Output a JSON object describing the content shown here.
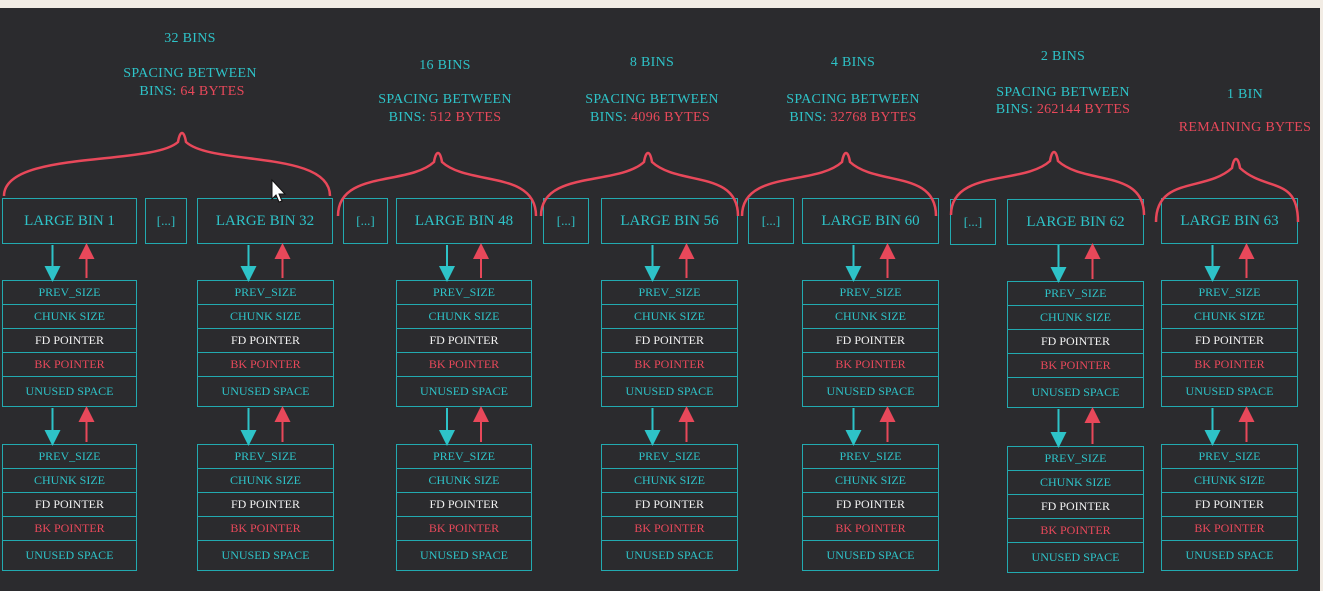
{
  "groups": [
    {
      "count": "32 BINS",
      "spacing_label": "SPACING BETWEEN",
      "spacing_prefix": "BINS:",
      "spacing_value": "64 BYTES"
    },
    {
      "count": "16 BINS",
      "spacing_label": "SPACING BETWEEN",
      "spacing_prefix": "BINS:",
      "spacing_value": "512 BYTES"
    },
    {
      "count": "8 BINS",
      "spacing_label": "SPACING BETWEEN",
      "spacing_prefix": "BINS:",
      "spacing_value": "4096 BYTES"
    },
    {
      "count": "4 BINS",
      "spacing_label": "SPACING BETWEEN",
      "spacing_prefix": "BINS:",
      "spacing_value": "32768 BYTES"
    },
    {
      "count": "2 BINS",
      "spacing_label": "SPACING BETWEEN",
      "spacing_prefix": "BINS:",
      "spacing_value": "262144 BYTES"
    },
    {
      "count": "1 BIN",
      "spacing_value": "REMAINING BYTES"
    }
  ],
  "bins": [
    "LARGE BIN 1",
    "LARGE BIN 32",
    "LARGE BIN 48",
    "LARGE BIN 56",
    "LARGE BIN 60",
    "LARGE BIN 62",
    "LARGE BIN 63"
  ],
  "ellipsis": "[...]",
  "chunk_fields": [
    "PREV_SIZE",
    "CHUNK SIZE",
    "FD POINTER",
    "BK POINTER",
    "UNUSED SPACE"
  ],
  "colors": {
    "background": "#2b2b2e",
    "teal": "#2ec3c8",
    "red": "#e8485a",
    "fd_text": "#f2f2f2",
    "border": "#22aab0"
  },
  "icons": {
    "forward_arrow": "down-arrow-icon",
    "back_arrow": "up-arrow-icon",
    "cursor": "mouse-cursor-icon"
  }
}
